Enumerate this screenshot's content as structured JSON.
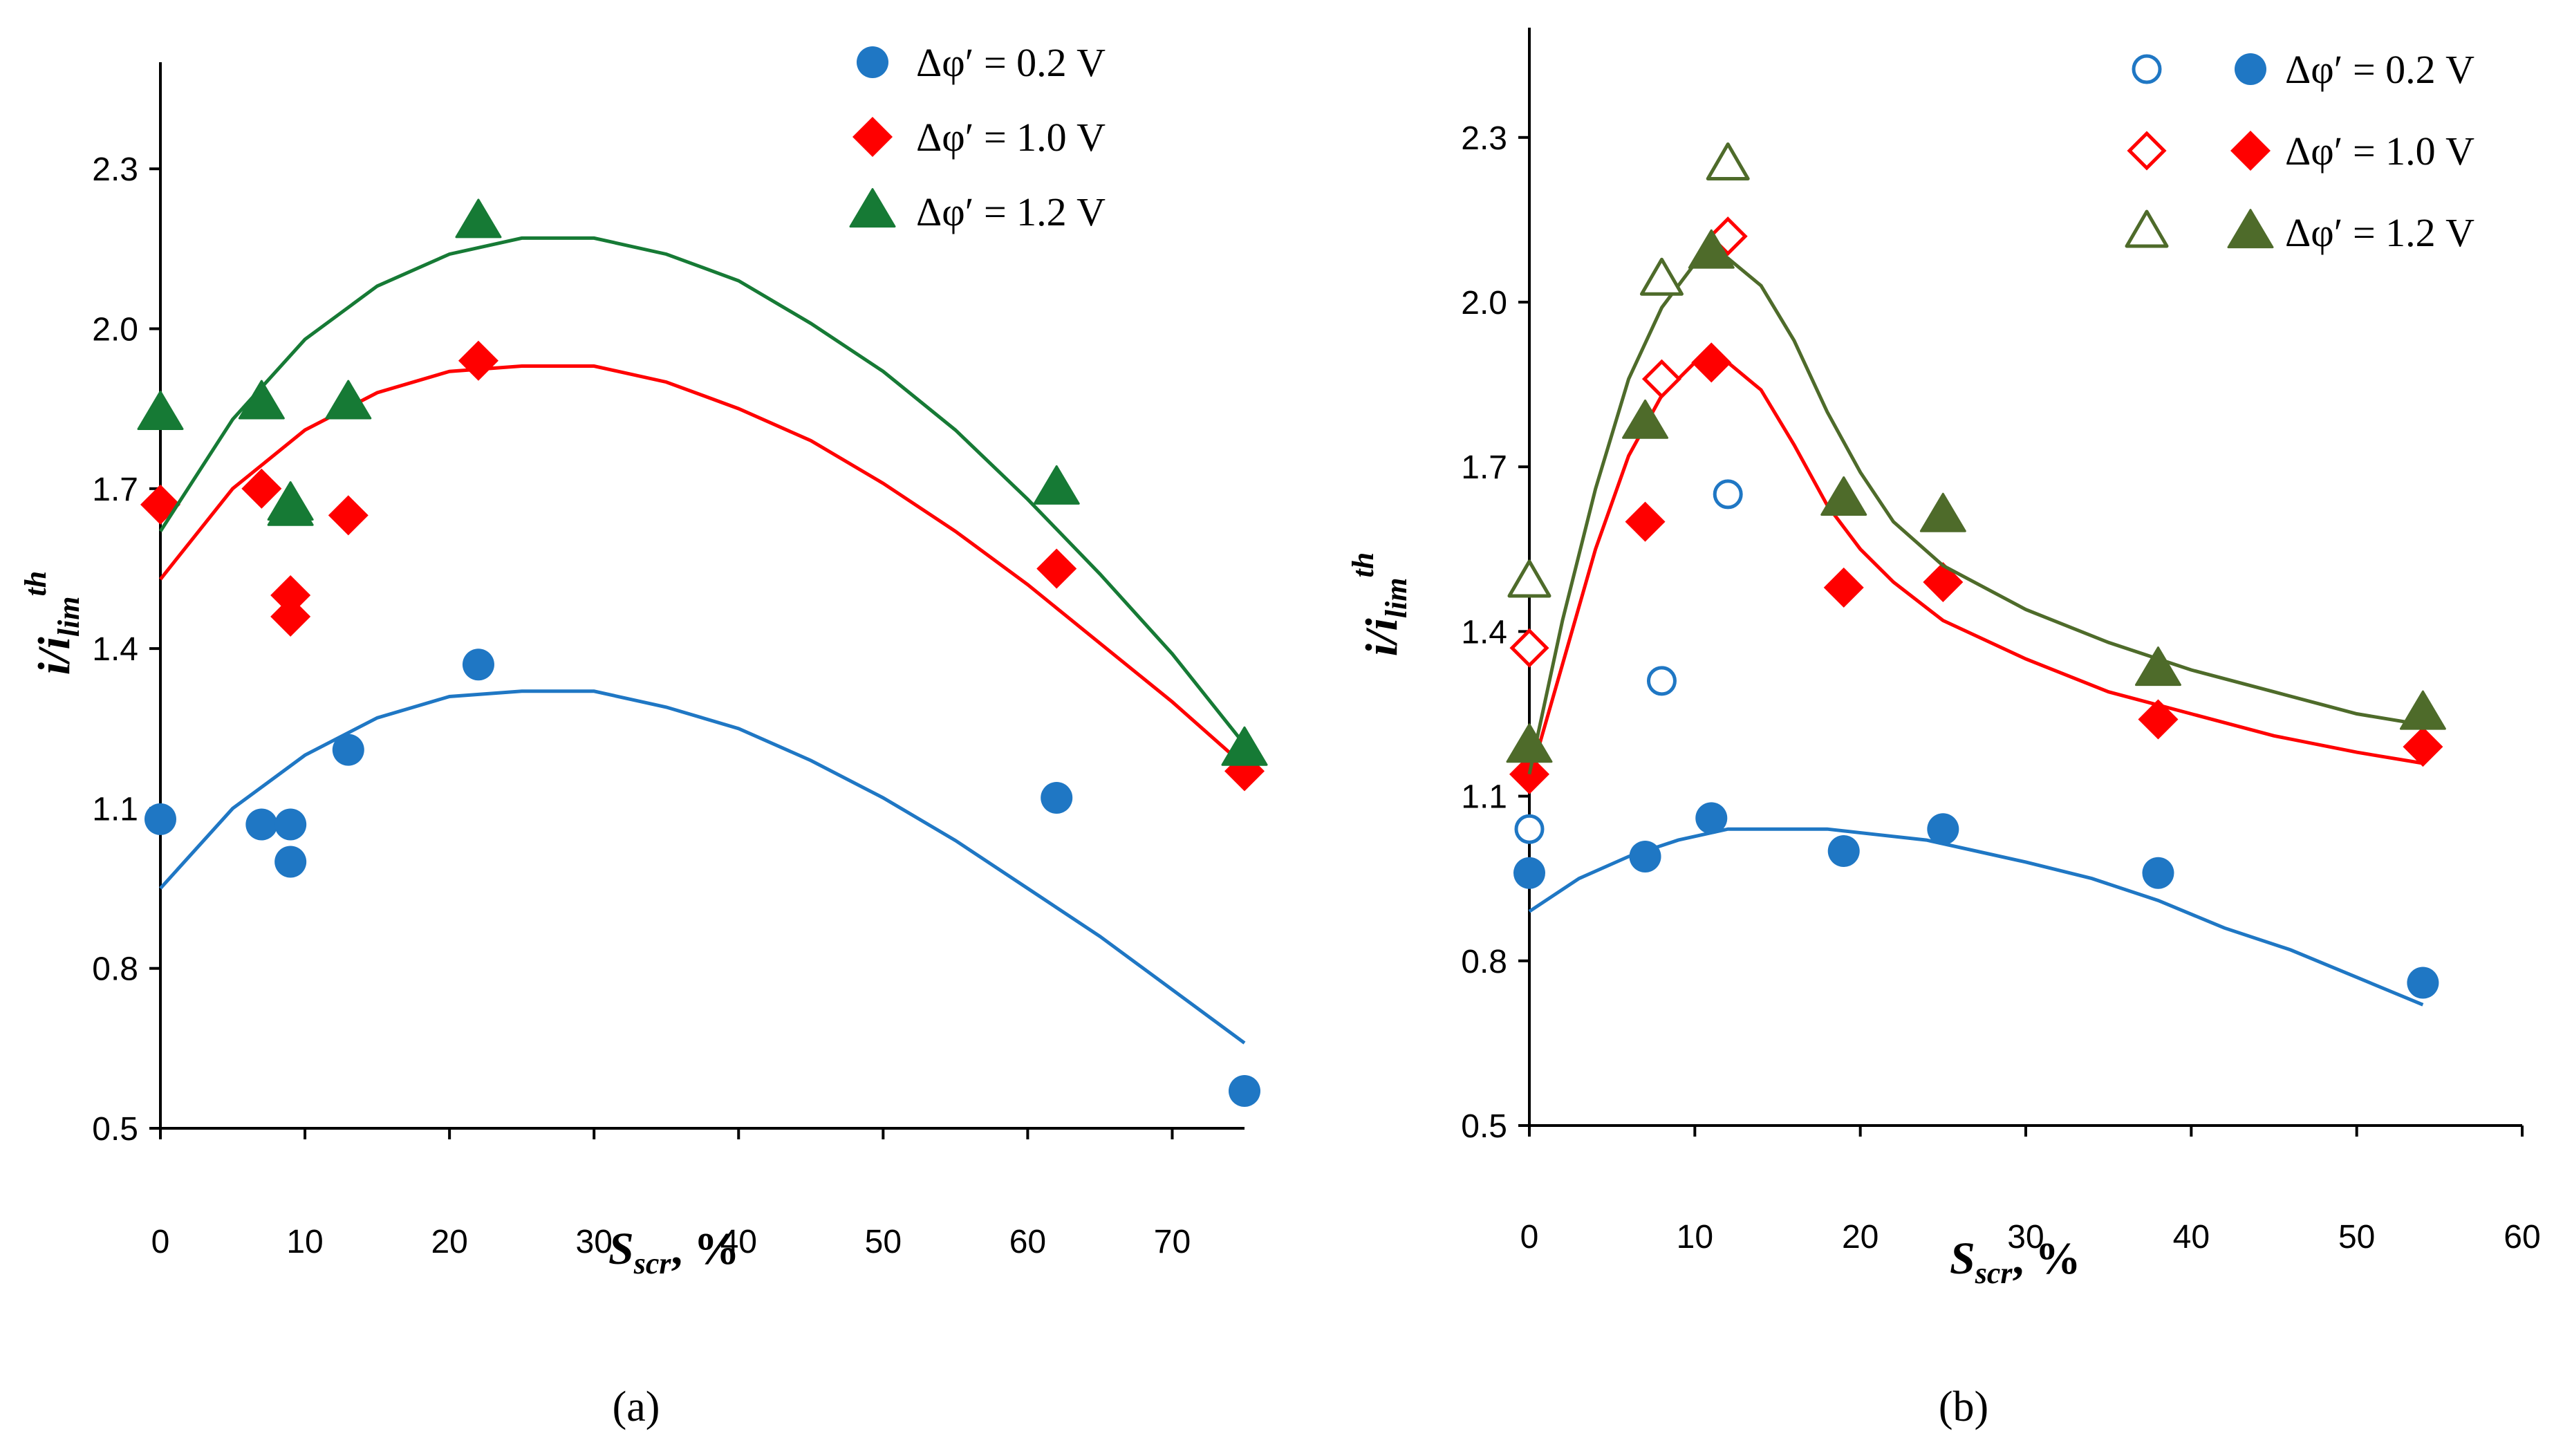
{
  "chart_data": [
    {
      "type": "scatter",
      "panel_label": "(a)",
      "xlabel": {
        "main": "S",
        "sub": "scr",
        "rest": ", %"
      },
      "ylabel": {
        "main": "i/i",
        "sub": "lim",
        "sup": "th"
      },
      "xlim": [
        0,
        75
      ],
      "ylim": [
        0.5,
        2.5
      ],
      "xticks": [
        "0",
        "10",
        "20",
        "30",
        "40",
        "50",
        "60",
        "70"
      ],
      "xtick_values": [
        0,
        10,
        20,
        30,
        40,
        50,
        60,
        70
      ],
      "yticks": [
        "0.5",
        "0.8",
        "1.1",
        "1.4",
        "1.7",
        "2.0",
        "2.3"
      ],
      "ytick_values": [
        0.5,
        0.8,
        1.1,
        1.4,
        1.7,
        2.0,
        2.3
      ],
      "grid": false,
      "legend": "top-right",
      "series": [
        {
          "name": "Δφ′ = 0.2 V",
          "color": "#1f77c4",
          "marker": "circle",
          "points": [
            [
              0,
              1.08
            ],
            [
              7,
              1.07
            ],
            [
              9,
              1.07
            ],
            [
              9,
              1.0
            ],
            [
              13,
              1.21
            ],
            [
              22,
              1.37
            ],
            [
              62,
              1.12
            ],
            [
              75,
              0.57
            ]
          ],
          "fit_points": [
            [
              0,
              0.95
            ],
            [
              5,
              1.1
            ],
            [
              10,
              1.2
            ],
            [
              15,
              1.27
            ],
            [
              20,
              1.31
            ],
            [
              25,
              1.32
            ],
            [
              30,
              1.32
            ],
            [
              35,
              1.29
            ],
            [
              40,
              1.25
            ],
            [
              45,
              1.19
            ],
            [
              50,
              1.12
            ],
            [
              55,
              1.04
            ],
            [
              60,
              0.95
            ],
            [
              65,
              0.86
            ],
            [
              70,
              0.76
            ],
            [
              75,
              0.66
            ]
          ]
        },
        {
          "name": "Δφ′ = 1.0 V",
          "color": "#ff0000",
          "marker": "diamond",
          "points": [
            [
              0,
              1.67
            ],
            [
              7,
              1.7
            ],
            [
              9,
              1.5
            ],
            [
              9,
              1.46
            ],
            [
              13,
              1.65
            ],
            [
              22,
              1.94
            ],
            [
              62,
              1.55
            ],
            [
              75,
              1.17
            ]
          ],
          "fit_points": [
            [
              0,
              1.53
            ],
            [
              5,
              1.7
            ],
            [
              10,
              1.81
            ],
            [
              15,
              1.88
            ],
            [
              20,
              1.92
            ],
            [
              25,
              1.93
            ],
            [
              30,
              1.93
            ],
            [
              35,
              1.9
            ],
            [
              40,
              1.85
            ],
            [
              45,
              1.79
            ],
            [
              50,
              1.71
            ],
            [
              55,
              1.62
            ],
            [
              60,
              1.52
            ],
            [
              65,
              1.41
            ],
            [
              70,
              1.3
            ],
            [
              75,
              1.18
            ]
          ]
        },
        {
          "name": "Δφ′ = 1.2 V",
          "color": "#167a35",
          "marker": "triangle",
          "points": [
            [
              0,
              1.84
            ],
            [
              7,
              1.86
            ],
            [
              9,
              1.67
            ],
            [
              9,
              1.66
            ],
            [
              13,
              1.86
            ],
            [
              22,
              2.2
            ],
            [
              62,
              1.7
            ],
            [
              75,
              1.21
            ]
          ],
          "fit_points": [
            [
              0,
              1.62
            ],
            [
              5,
              1.83
            ],
            [
              10,
              1.98
            ],
            [
              15,
              2.08
            ],
            [
              20,
              2.14
            ],
            [
              25,
              2.17
            ],
            [
              30,
              2.17
            ],
            [
              35,
              2.14
            ],
            [
              40,
              2.09
            ],
            [
              45,
              2.01
            ],
            [
              50,
              1.92
            ],
            [
              55,
              1.81
            ],
            [
              60,
              1.68
            ],
            [
              65,
              1.54
            ],
            [
              70,
              1.39
            ],
            [
              75,
              1.22
            ]
          ]
        }
      ]
    },
    {
      "type": "scatter",
      "panel_label": "(b)",
      "xlabel": {
        "main": "S",
        "sub": "scr",
        "rest": ", %"
      },
      "ylabel": {
        "main": "i/i",
        "sub": "lim",
        "sup": "th"
      },
      "xlim": [
        0,
        60
      ],
      "ylim": [
        0.5,
        2.5
      ],
      "xticks": [
        "0",
        "10",
        "20",
        "30",
        "40",
        "50",
        "60"
      ],
      "xtick_values": [
        0,
        10,
        20,
        30,
        40,
        50,
        60
      ],
      "yticks": [
        "0.5",
        "0.8",
        "1.1",
        "1.4",
        "1.7",
        "2.0",
        "2.3"
      ],
      "ytick_values": [
        0.5,
        0.8,
        1.1,
        1.4,
        1.7,
        2.0,
        2.3
      ],
      "grid": false,
      "legend": "top-right",
      "series": [
        {
          "name": "Δφ′ = 0.2 V",
          "color": "#1f77c4",
          "marker": "circle",
          "open_points": [
            [
              0,
              1.04
            ],
            [
              8,
              1.31
            ],
            [
              12,
              1.65
            ]
          ],
          "points": [
            [
              0,
              0.96
            ],
            [
              7,
              0.99
            ],
            [
              11,
              1.06
            ],
            [
              19,
              1.0
            ],
            [
              25,
              1.04
            ],
            [
              38,
              0.96
            ],
            [
              54,
              0.76
            ]
          ],
          "fit_points": [
            [
              0,
              0.89
            ],
            [
              3,
              0.95
            ],
            [
              6,
              0.99
            ],
            [
              9,
              1.02
            ],
            [
              12,
              1.04
            ],
            [
              15,
              1.04
            ],
            [
              18,
              1.04
            ],
            [
              21,
              1.03
            ],
            [
              24,
              1.02
            ],
            [
              27,
              1.0
            ],
            [
              30,
              0.98
            ],
            [
              34,
              0.95
            ],
            [
              38,
              0.91
            ],
            [
              42,
              0.86
            ],
            [
              46,
              0.82
            ],
            [
              50,
              0.77
            ],
            [
              54,
              0.72
            ]
          ]
        },
        {
          "name": "Δφ′ = 1.0 V",
          "color": "#ff0000",
          "marker": "diamond",
          "open_points": [
            [
              0,
              1.37
            ],
            [
              8,
              1.86
            ],
            [
              12,
              2.12
            ]
          ],
          "points": [
            [
              0,
              1.14
            ],
            [
              7,
              1.6
            ],
            [
              11,
              1.89
            ],
            [
              19,
              1.48
            ],
            [
              25,
              1.49
            ],
            [
              38,
              1.24
            ],
            [
              54,
              1.19
            ]
          ],
          "fit_points": [
            [
              0,
              1.13
            ],
            [
              2,
              1.34
            ],
            [
              4,
              1.55
            ],
            [
              6,
              1.72
            ],
            [
              8,
              1.83
            ],
            [
              10,
              1.89
            ],
            [
              12,
              1.89
            ],
            [
              14,
              1.84
            ],
            [
              16,
              1.74
            ],
            [
              18,
              1.63
            ],
            [
              20,
              1.55
            ],
            [
              22,
              1.49
            ],
            [
              25,
              1.42
            ],
            [
              30,
              1.35
            ],
            [
              35,
              1.29
            ],
            [
              40,
              1.25
            ],
            [
              45,
              1.21
            ],
            [
              50,
              1.18
            ],
            [
              54,
              1.16
            ]
          ]
        },
        {
          "name": "Δφ′ = 1.2 V",
          "color": "#4e6b2a",
          "marker": "triangle",
          "open_points": [
            [
              0,
              1.49
            ],
            [
              8,
              2.04
            ],
            [
              12,
              2.25
            ]
          ],
          "points": [
            [
              0,
              1.19
            ],
            [
              7,
              1.78
            ],
            [
              11,
              2.09
            ],
            [
              19,
              1.64
            ],
            [
              25,
              1.61
            ],
            [
              38,
              1.33
            ],
            [
              54,
              1.25
            ]
          ],
          "fit_points": [
            [
              0,
              1.14
            ],
            [
              2,
              1.42
            ],
            [
              4,
              1.66
            ],
            [
              6,
              1.86
            ],
            [
              8,
              1.99
            ],
            [
              10,
              2.07
            ],
            [
              12,
              2.08
            ],
            [
              14,
              2.03
            ],
            [
              16,
              1.93
            ],
            [
              18,
              1.8
            ],
            [
              20,
              1.69
            ],
            [
              22,
              1.6
            ],
            [
              25,
              1.52
            ],
            [
              30,
              1.44
            ],
            [
              35,
              1.38
            ],
            [
              40,
              1.33
            ],
            [
              45,
              1.29
            ],
            [
              50,
              1.25
            ],
            [
              54,
              1.23
            ]
          ]
        }
      ]
    }
  ]
}
